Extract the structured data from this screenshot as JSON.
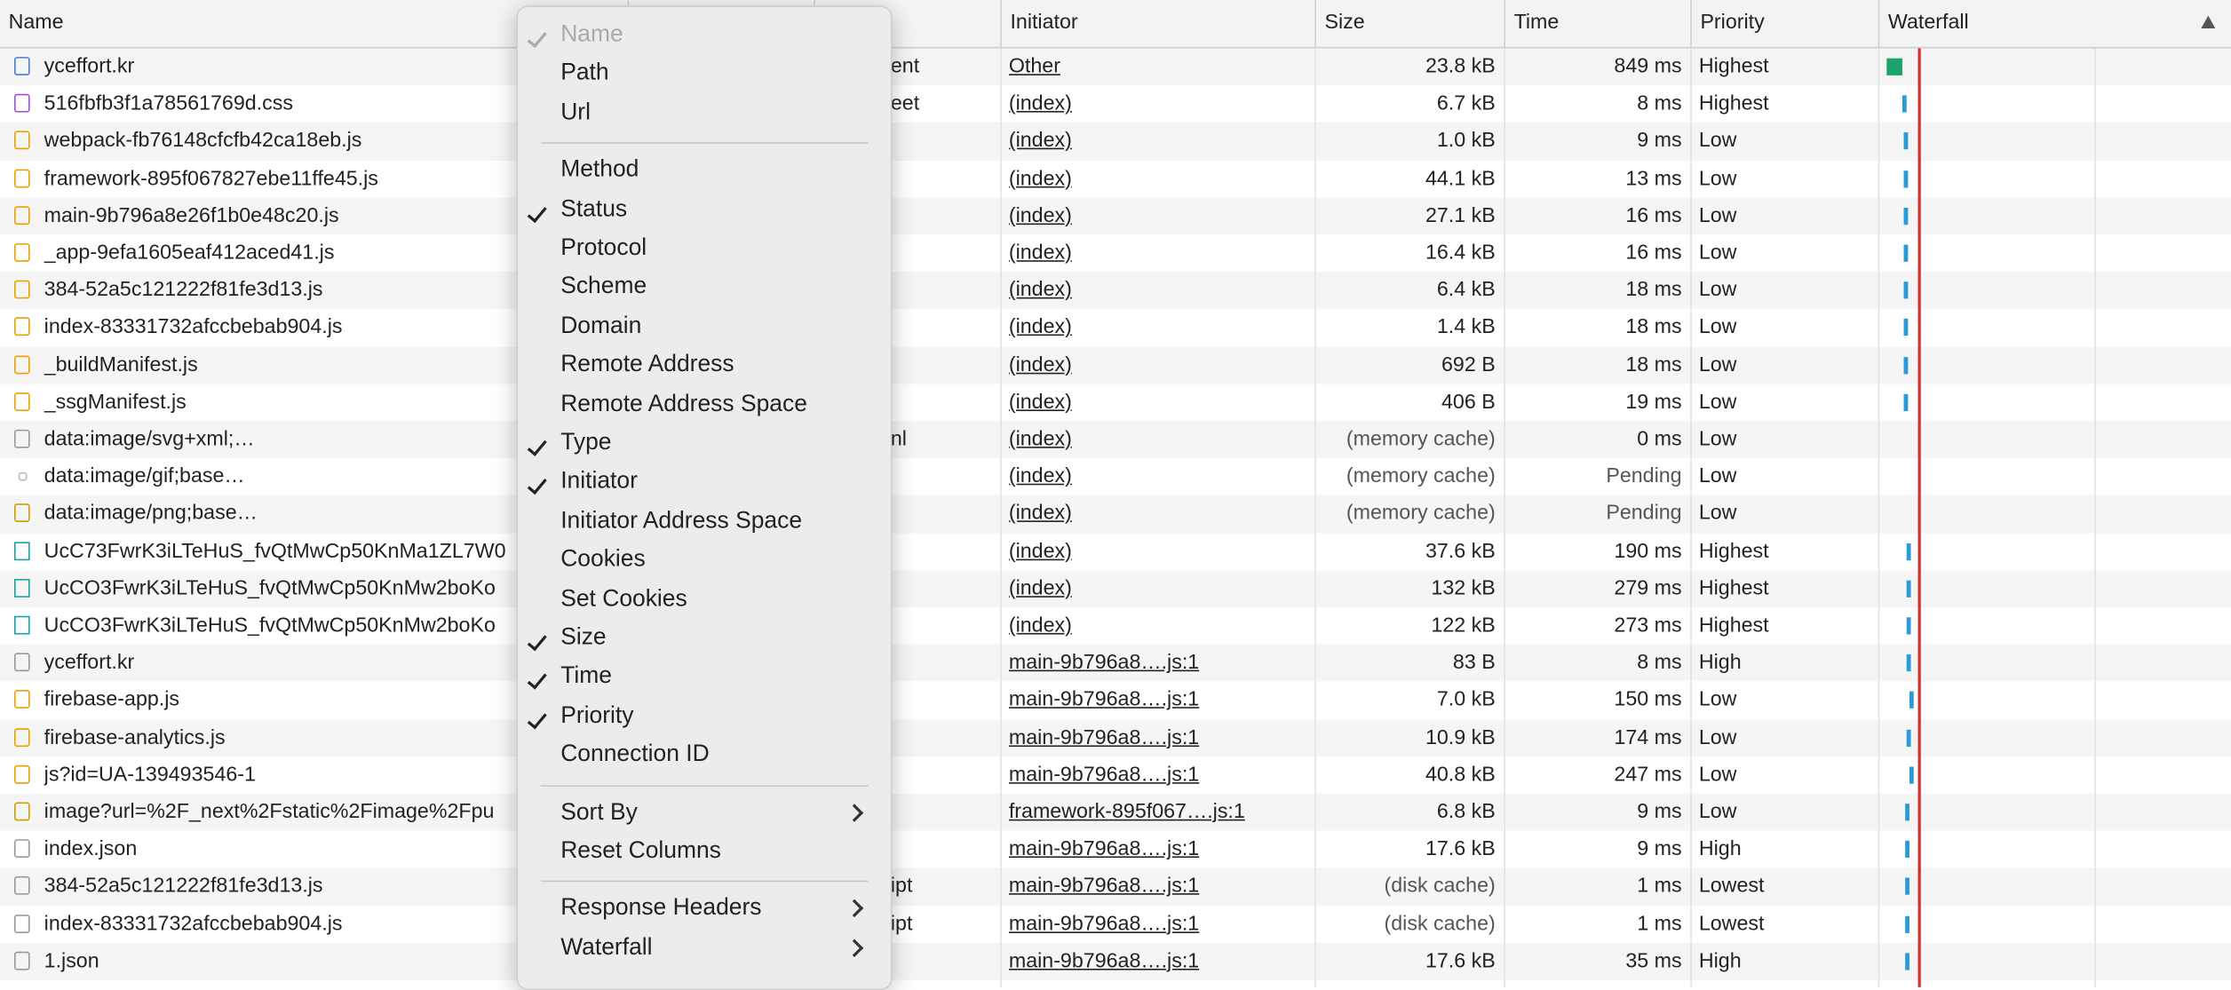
{
  "table": {
    "columns": [
      "Name",
      "Initiator",
      "Size",
      "Time",
      "Priority",
      "Waterfall"
    ],
    "rows": [
      [
        "yceffort.kr",
        "ent",
        "Other",
        "23.8 kB",
        "849 ms",
        "Highest"
      ],
      [
        "516fbfb3f1a78561769d.css",
        "eet",
        "(index)",
        "6.7 kB",
        "8 ms",
        "Highest"
      ],
      [
        "webpack-fb76148cfcfb42ca18eb.js",
        "",
        "(index)",
        "1.0 kB",
        "9 ms",
        "Low"
      ],
      [
        "framework-895f067827ebe11ffe45.js",
        "",
        "(index)",
        "44.1 kB",
        "13 ms",
        "Low"
      ],
      [
        "main-9b796a8e26f1b0e48c20.js",
        "",
        "(index)",
        "27.1 kB",
        "16 ms",
        "Low"
      ],
      [
        "_app-9efa1605eaf412aced41.js",
        "",
        "(index)",
        "16.4 kB",
        "16 ms",
        "Low"
      ],
      [
        "384-52a5c121222f81fe3d13.js",
        "",
        "(index)",
        "6.4 kB",
        "18 ms",
        "Low"
      ],
      [
        "index-83331732afccbebab904.js",
        "",
        "(index)",
        "1.4 kB",
        "18 ms",
        "Low"
      ],
      [
        "_buildManifest.js",
        "",
        "(index)",
        "692 B",
        "18 ms",
        "Low"
      ],
      [
        "_ssgManifest.js",
        "",
        "(index)",
        "406 B",
        "19 ms",
        "Low"
      ],
      [
        "data:image/svg+xml;…",
        "nl",
        "(index)",
        "(memory cache)",
        "0 ms",
        "Low"
      ],
      [
        "data:image/gif;base…",
        "",
        "(index)",
        "(memory cache)",
        "Pending",
        "Low"
      ],
      [
        "data:image/png;base…",
        "",
        "(index)",
        "(memory cache)",
        "Pending",
        "Low"
      ],
      [
        "UcC73FwrK3iLTeHuS_fvQtMwCp50KnMa1ZL7W0",
        "",
        "(index)",
        "37.6 kB",
        "190 ms",
        "Highest"
      ],
      [
        "UcCO3FwrK3iLTeHuS_fvQtMwCp50KnMw2boKo",
        "",
        "(index)",
        "132 kB",
        "279 ms",
        "Highest"
      ],
      [
        "UcCO3FwrK3iLTeHuS_fvQtMwCp50KnMw2boKo",
        "",
        "(index)",
        "122 kB",
        "273 ms",
        "Highest"
      ],
      [
        "yceffort.kr",
        "",
        "main-9b796a8….js:1",
        "83 B",
        "8 ms",
        "High"
      ],
      [
        "firebase-app.js",
        "",
        "main-9b796a8….js:1",
        "7.0 kB",
        "150 ms",
        "Low"
      ],
      [
        "firebase-analytics.js",
        "",
        "main-9b796a8….js:1",
        "10.9 kB",
        "174 ms",
        "Low"
      ],
      [
        "js?id=UA-139493546-1",
        "",
        "main-9b796a8….js:1",
        "40.8 kB",
        "247 ms",
        "Low"
      ],
      [
        "image?url=%2F_next%2Fstatic%2Fimage%2Fpu",
        "",
        "framework-895f067….js:1",
        "6.8 kB",
        "9 ms",
        "Low"
      ],
      [
        "index.json",
        "",
        "main-9b796a8….js:1",
        "17.6 kB",
        "9 ms",
        "High"
      ],
      [
        "384-52a5c121222f81fe3d13.js",
        "ipt",
        "main-9b796a8….js:1",
        "(disk cache)",
        "1 ms",
        "Lowest"
      ],
      [
        "index-83331732afccbebab904.js",
        "ipt",
        "main-9b796a8….js:1",
        "(disk cache)",
        "1 ms",
        "Lowest"
      ],
      [
        "1.json",
        "",
        "main-9b796a8….js:1",
        "17.6 kB",
        "35 ms",
        "High"
      ]
    ]
  },
  "context_menu": {
    "groups": [
      [
        {
          "label": "Name",
          "checked": true,
          "disabled": true
        },
        {
          "label": "Path"
        },
        {
          "label": "Url"
        }
      ],
      [
        {
          "label": "Method"
        },
        {
          "label": "Status",
          "checked": true
        },
        {
          "label": "Protocol"
        },
        {
          "label": "Scheme"
        },
        {
          "label": "Domain"
        },
        {
          "label": "Remote Address"
        },
        {
          "label": "Remote Address Space"
        },
        {
          "label": "Type",
          "checked": true
        },
        {
          "label": "Initiator",
          "checked": true
        },
        {
          "label": "Initiator Address Space"
        },
        {
          "label": "Cookies"
        },
        {
          "label": "Set Cookies"
        },
        {
          "label": "Size",
          "checked": true
        },
        {
          "label": "Time",
          "checked": true
        },
        {
          "label": "Priority",
          "checked": true
        },
        {
          "label": "Connection ID"
        }
      ],
      [
        {
          "label": "Sort By",
          "submenu": true
        },
        {
          "label": "Reset Columns"
        }
      ],
      [
        {
          "label": "Response Headers",
          "submenu": true
        },
        {
          "label": "Waterfall",
          "submenu": true
        }
      ]
    ]
  }
}
